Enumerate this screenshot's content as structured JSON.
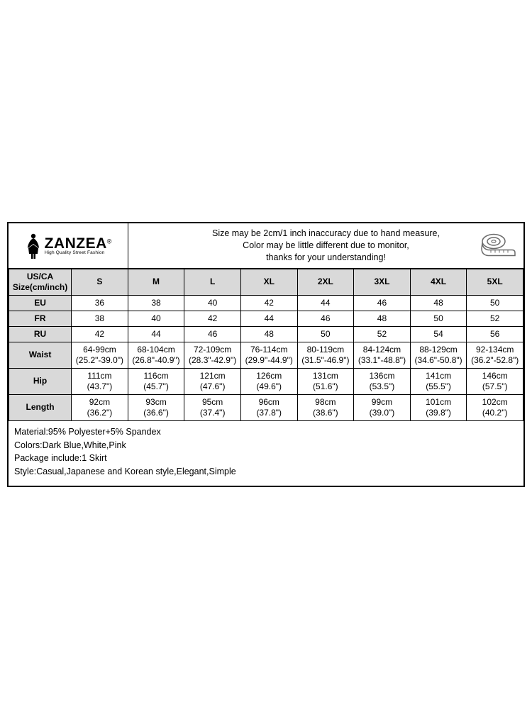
{
  "brand": {
    "name": "ZANZEA",
    "registered": "®",
    "tagline": "High Quality Street Fashion"
  },
  "disclaimer": {
    "line1": "Size may be 2cm/1 inch inaccuracy due to hand measure,",
    "line2": "Color may be little different due to monitor,",
    "line3": "thanks for your understanding!"
  },
  "columns": [
    "US/CA Size(cm/inch)",
    "S",
    "M",
    "L",
    "XL",
    "2XL",
    "3XL",
    "4XL",
    "5XL"
  ],
  "rows": {
    "eu": {
      "label": "EU",
      "vals": [
        "36",
        "38",
        "40",
        "42",
        "44",
        "46",
        "48",
        "50"
      ]
    },
    "fr": {
      "label": "FR",
      "vals": [
        "38",
        "40",
        "42",
        "44",
        "46",
        "48",
        "50",
        "52"
      ]
    },
    "ru": {
      "label": "RU",
      "vals": [
        "42",
        "44",
        "46",
        "48",
        "50",
        "52",
        "54",
        "56"
      ]
    },
    "waist": {
      "label": "Waist",
      "cm": [
        "64-99cm",
        "68-104cm",
        "72-109cm",
        "76-114cm",
        "80-119cm",
        "84-124cm",
        "88-129cm",
        "92-134cm"
      ],
      "in": [
        "(25.2\"-39.0\")",
        "(26.8\"-40.9\")",
        "(28.3\"-42.9\")",
        "(29.9\"-44.9\")",
        "(31.5\"-46.9\")",
        "(33.1\"-48.8\")",
        "(34.6\"-50.8\")",
        "(36.2\"-52.8\")"
      ]
    },
    "hip": {
      "label": "Hip",
      "cm": [
        "111cm",
        "116cm",
        "121cm",
        "126cm",
        "131cm",
        "136cm",
        "141cm",
        "146cm"
      ],
      "in": [
        "(43.7\")",
        "(45.7\")",
        "(47.6\")",
        "(49.6\")",
        "(51.6\")",
        "(53.5\")",
        "(55.5\")",
        "(57.5\")"
      ]
    },
    "length": {
      "label": "Length",
      "cm": [
        "92cm",
        "93cm",
        "95cm",
        "96cm",
        "98cm",
        "99cm",
        "101cm",
        "102cm"
      ],
      "in": [
        "(36.2\")",
        "(36.6\")",
        "(37.4\")",
        "(37.8\")",
        "(38.6\")",
        "(39.0\")",
        "(39.8\")",
        "(40.2\")"
      ]
    }
  },
  "details": {
    "material": "Material:95% Polyester+5% Spandex",
    "colors": "Colors:Dark Blue,White,Pink",
    "package": "Package include:1 Skirt",
    "style": "Style:Casual,Japanese and Korean style,Elegant,Simple"
  },
  "style": {
    "header_bg": "#d9d9d9",
    "border_color": "#000000",
    "font_size_cell": 12,
    "font_size_disclaimer": 12.5,
    "tape_stroke": "#6b6b6b"
  }
}
